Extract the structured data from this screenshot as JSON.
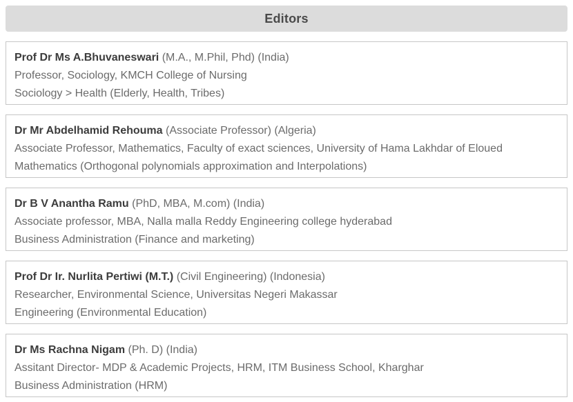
{
  "page": {
    "title": "Editors"
  },
  "editors": [
    {
      "name": "Prof Dr Ms A.Bhuvaneswari",
      "qualifications": "(M.A., M.Phil, Phd) (India)",
      "affiliation": "Professor, Sociology, KMCH College of Nursing",
      "subjects": "Sociology > Health (Elderly, Health, Tribes)"
    },
    {
      "name": "Dr Mr Abdelhamid Rehouma",
      "qualifications": "(Associate Professor) (Algeria)",
      "affiliation": "Associate Professor, Mathematics, Faculty of exact sciences, University of Hama Lakhdar of Eloued",
      "subjects": "Mathematics (Orthogonal polynomials approximation and Interpolations)"
    },
    {
      "name": "Dr B V Anantha Ramu",
      "qualifications": "(PhD, MBA, M.com) (India)",
      "affiliation": "Associate professor, MBA, Nalla malla Reddy Engineering college hyderabad",
      "subjects": "Business Administration (Finance and marketing)"
    },
    {
      "name": "Prof Dr Ir. Nurlita Pertiwi (M.T.)",
      "qualifications": "(Civil Engineering) (Indonesia)",
      "affiliation": "Researcher, Environmental Science, Universitas Negeri Makassar",
      "subjects": "Engineering (Environmental Education)"
    },
    {
      "name": "Dr Ms Rachna Nigam",
      "qualifications": "(Ph. D) (India)",
      "affiliation": "Assitant Director- MDP & Academic Projects, HRM, ITM Business School, Kharghar",
      "subjects": "Business Administration (HRM)"
    }
  ],
  "colors": {
    "header_bg": "#dcdcdc",
    "header_text": "#4a4a4a",
    "card_border": "#c6c6c6",
    "name_text": "#3c3c3c",
    "secondary_text": "#6b6b6b"
  }
}
